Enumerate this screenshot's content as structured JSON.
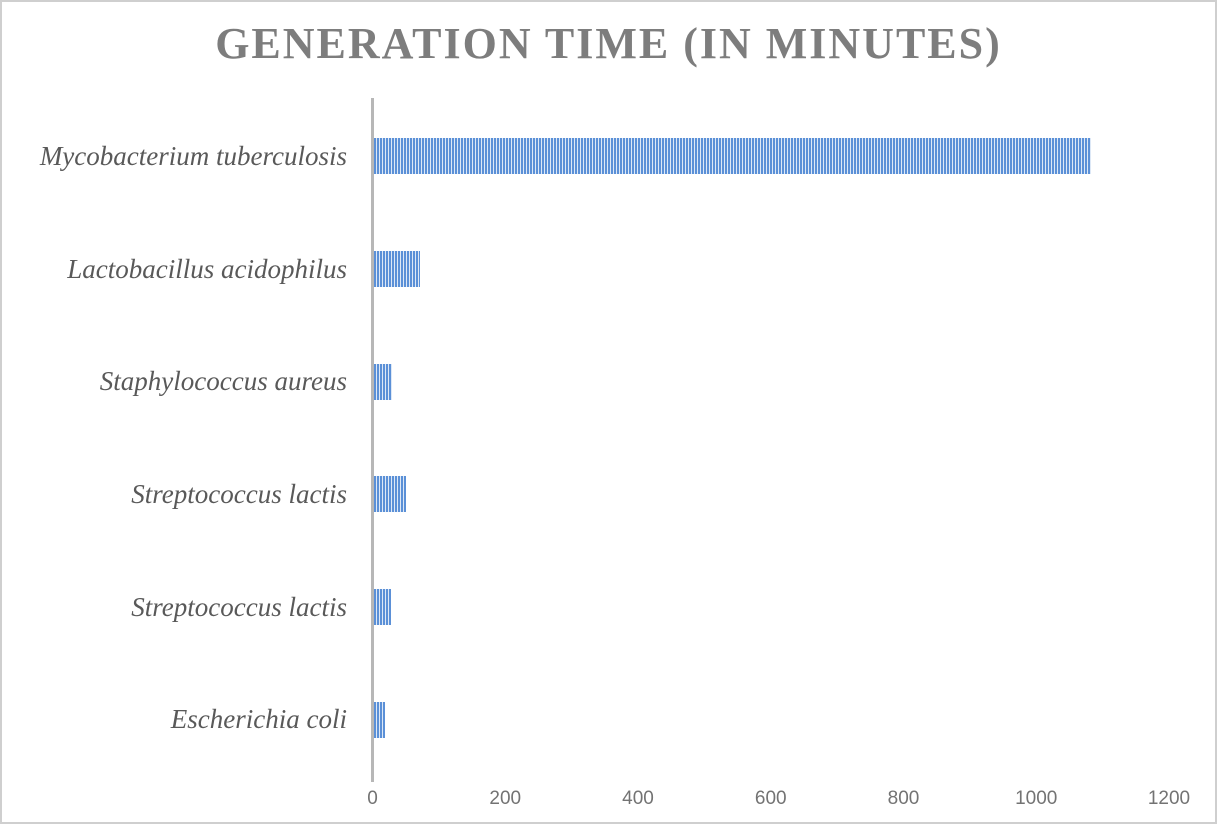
{
  "chart_data": {
    "type": "bar",
    "orientation": "horizontal",
    "title": "GENERATION TIME (IN MINUTES)",
    "categories": [
      "Mycobacterium tuberculosis",
      "Lactobacillus acidophilus",
      "Staphylococcus aureus",
      "Streptococcus lactis",
      "Streptococcus lactis",
      "Escherichia coli"
    ],
    "values": [
      1080,
      70,
      27,
      48,
      26,
      17
    ],
    "xlabel": "",
    "ylabel": "",
    "xlim": [
      0,
      1200
    ],
    "x_ticks": [
      0,
      200,
      400,
      600,
      800,
      1000,
      1200
    ],
    "grid": false,
    "legend": false,
    "bar_fill": {
      "pattern": "vertical-stripes",
      "stripe_color": "#5b90d7",
      "background_color": "#dde8f6"
    },
    "title_color": "#7d7d7d",
    "category_label_color": "#595959",
    "tick_label_color": "#737373",
    "axis_line_color": "#b7b7b7"
  }
}
